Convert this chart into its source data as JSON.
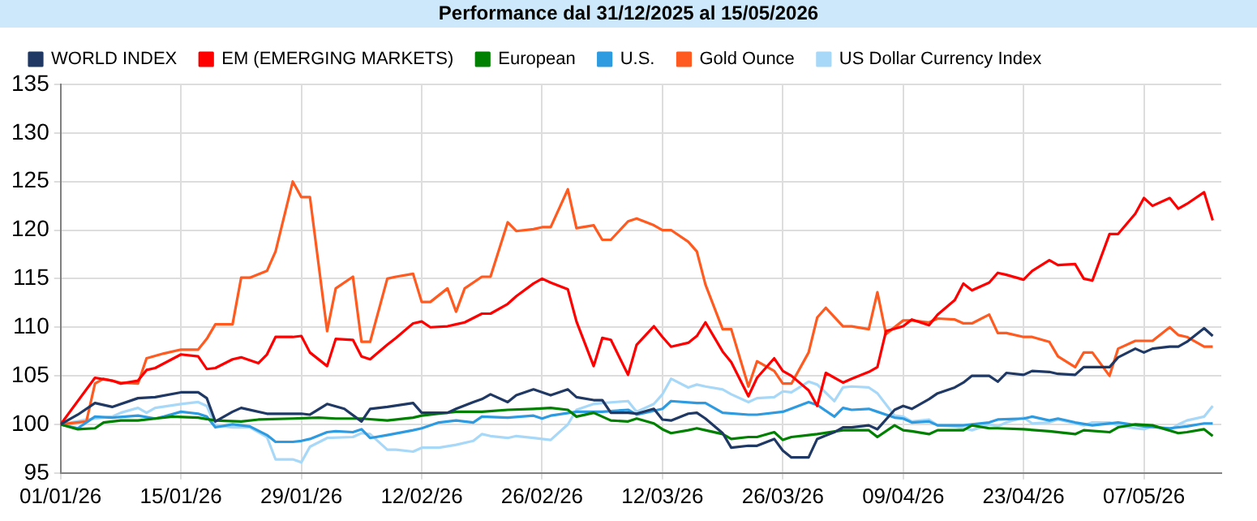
{
  "chart_data": {
    "type": "line",
    "title": "Performance dal 31/12/2025 al 15/05/2026",
    "xlim": [
      "2026-01-01",
      "2026-05-16"
    ],
    "xticks": [
      {
        "value": "2026-01-01",
        "label": "01/01/26"
      },
      {
        "value": "2026-01-15",
        "label": "15/01/26"
      },
      {
        "value": "2026-01-29",
        "label": "29/01/26"
      },
      {
        "value": "2026-02-12",
        "label": "12/02/26"
      },
      {
        "value": "2026-02-26",
        "label": "26/02/26"
      },
      {
        "value": "2026-03-12",
        "label": "12/03/26"
      },
      {
        "value": "2026-03-26",
        "label": "26/03/26"
      },
      {
        "value": "2026-04-09",
        "label": "09/04/26"
      },
      {
        "value": "2026-04-23",
        "label": "23/04/26"
      },
      {
        "value": "2026-05-07",
        "label": "07/05/26"
      }
    ],
    "ylim": [
      95,
      135
    ],
    "yticks": [
      95,
      100,
      105,
      110,
      115,
      120,
      125,
      130,
      135
    ],
    "grid": true,
    "legend": "top",
    "marker": "none",
    "line_style": "solid",
    "series": [
      {
        "name": "WORLD INDEX",
        "color": "#1f3864",
        "x": [
          "2026-01-01",
          "2026-01-03",
          "2026-01-05",
          "2026-01-07",
          "2026-01-10",
          "2026-01-12",
          "2026-01-15",
          "2026-01-17",
          "2026-01-18",
          "2026-01-19",
          "2026-01-21",
          "2026-01-22",
          "2026-01-25",
          "2026-01-29",
          "2026-01-30",
          "2026-02-01",
          "2026-02-03",
          "2026-02-05",
          "2026-02-06",
          "2026-02-08",
          "2026-02-11",
          "2026-02-12",
          "2026-02-15",
          "2026-02-16",
          "2026-02-18",
          "2026-02-19",
          "2026-02-20",
          "2026-02-22",
          "2026-02-23",
          "2026-02-25",
          "2026-02-27",
          "2026-03-01",
          "2026-03-02",
          "2026-03-04",
          "2026-03-05",
          "2026-03-06",
          "2026-03-08",
          "2026-03-09",
          "2026-03-11",
          "2026-03-12",
          "2026-03-13",
          "2026-03-15",
          "2026-03-16",
          "2026-03-17",
          "2026-03-19",
          "2026-03-20",
          "2026-03-22",
          "2026-03-23",
          "2026-03-25",
          "2026-03-26",
          "2026-03-27",
          "2026-03-29",
          "2026-03-30",
          "2026-04-01",
          "2026-04-02",
          "2026-04-03",
          "2026-04-05",
          "2026-04-06",
          "2026-04-08",
          "2026-04-09",
          "2026-04-10",
          "2026-04-12",
          "2026-04-13",
          "2026-04-15",
          "2026-04-16",
          "2026-04-17",
          "2026-04-19",
          "2026-04-20",
          "2026-04-21",
          "2026-04-23",
          "2026-04-24",
          "2026-04-26",
          "2026-04-27",
          "2026-04-29",
          "2026-04-30",
          "2026-05-01",
          "2026-05-03",
          "2026-05-04",
          "2026-05-06",
          "2026-05-07",
          "2026-05-08",
          "2026-05-10",
          "2026-05-11",
          "2026-05-12",
          "2026-05-14",
          "2026-05-15"
        ],
        "values": [
          100,
          101,
          102.2,
          101.8,
          102.7,
          102.8,
          103.3,
          103.3,
          102.7,
          100.3,
          101.3,
          101.7,
          101.1,
          101.1,
          101,
          102.1,
          101.6,
          100.3,
          101.6,
          101.8,
          102.2,
          101.2,
          101.2,
          101.6,
          102.3,
          102.6,
          103.1,
          102.3,
          103,
          103.6,
          103,
          103.6,
          102.8,
          102.5,
          102.5,
          101.2,
          101.2,
          101.1,
          101.6,
          100.5,
          100.4,
          101.1,
          101.2,
          100.6,
          99.1,
          97.6,
          97.8,
          97.8,
          98.5,
          97.3,
          96.6,
          96.6,
          98.5,
          99.2,
          99.7,
          99.7,
          99.9,
          99.5,
          101.5,
          101.9,
          101.6,
          102.6,
          103.2,
          103.8,
          104.3,
          105,
          105,
          104.4,
          105.3,
          105.1,
          105.5,
          105.4,
          105.2,
          105.1,
          105.9,
          105.9,
          105.9,
          106.9,
          107.8,
          107.4,
          107.8,
          108,
          108,
          108.5,
          109.9,
          109.1
        ]
      },
      {
        "name": "EM (EMERGING MARKETS)",
        "color": "#ff0000",
        "x": [
          "2026-01-01",
          "2026-01-05",
          "2026-01-07",
          "2026-01-08",
          "2026-01-10",
          "2026-01-11",
          "2026-01-12",
          "2026-01-15",
          "2026-01-17",
          "2026-01-18",
          "2026-01-19",
          "2026-01-21",
          "2026-01-22",
          "2026-01-24",
          "2026-01-25",
          "2026-01-26",
          "2026-01-28",
          "2026-01-29",
          "2026-01-30",
          "2026-02-01",
          "2026-02-02",
          "2026-02-04",
          "2026-02-05",
          "2026-02-06",
          "2026-02-08",
          "2026-02-09",
          "2026-02-11",
          "2026-02-12",
          "2026-02-13",
          "2026-02-15",
          "2026-02-16",
          "2026-02-17",
          "2026-02-19",
          "2026-02-20",
          "2026-02-22",
          "2026-02-23",
          "2026-02-25",
          "2026-02-26",
          "2026-02-27",
          "2026-03-01",
          "2026-03-02",
          "2026-03-04",
          "2026-03-05",
          "2026-03-06",
          "2026-03-08",
          "2026-03-09",
          "2026-03-11",
          "2026-03-12",
          "2026-03-13",
          "2026-03-15",
          "2026-03-16",
          "2026-03-17",
          "2026-03-19",
          "2026-03-20",
          "2026-03-22",
          "2026-03-23",
          "2026-03-25",
          "2026-03-26",
          "2026-03-27",
          "2026-03-29",
          "2026-03-30",
          "2026-03-31",
          "2026-04-02",
          "2026-04-03",
          "2026-04-05",
          "2026-04-06",
          "2026-04-07",
          "2026-04-09",
          "2026-04-10",
          "2026-04-12",
          "2026-04-13",
          "2026-04-15",
          "2026-04-16",
          "2026-04-17",
          "2026-04-19",
          "2026-04-20",
          "2026-04-21",
          "2026-04-23",
          "2026-04-24",
          "2026-04-26",
          "2026-04-27",
          "2026-04-29",
          "2026-04-30",
          "2026-05-01",
          "2026-05-03",
          "2026-05-04",
          "2026-05-06",
          "2026-05-07",
          "2026-05-08",
          "2026-05-10",
          "2026-05-11",
          "2026-05-12",
          "2026-05-14",
          "2026-05-15"
        ],
        "values": [
          100,
          104.8,
          104.5,
          104.2,
          104.5,
          105.6,
          105.8,
          107.2,
          107,
          105.7,
          105.8,
          106.7,
          106.9,
          106.3,
          107.2,
          109,
          109,
          109.1,
          107.4,
          106,
          108.8,
          108.7,
          107,
          106.7,
          108.2,
          108.9,
          110.4,
          110.6,
          110,
          110.1,
          110.3,
          110.5,
          111.4,
          111.4,
          112.4,
          113.2,
          114.5,
          115,
          114.6,
          113.9,
          110.6,
          106,
          108.9,
          108.7,
          105.1,
          108.2,
          110.1,
          109,
          108,
          108.4,
          109.1,
          110.5,
          107.5,
          106.4,
          102.9,
          104.8,
          106.8,
          105.5,
          105,
          103.5,
          101.9,
          105.3,
          104.3,
          104.7,
          105.4,
          105.9,
          109.6,
          110.1,
          110.8,
          110.2,
          111.3,
          112.8,
          114.5,
          113.8,
          114.6,
          115.6,
          115.4,
          114.9,
          115.8,
          116.9,
          116.4,
          116.5,
          115,
          114.8,
          119.6,
          119.6,
          121.7,
          123.3,
          122.5,
          123.3,
          122.2,
          122.7,
          123.9,
          121
        ]
      },
      {
        "name": "European",
        "color": "#008000",
        "x": [
          "2026-01-01",
          "2026-01-03",
          "2026-01-05",
          "2026-01-06",
          "2026-01-08",
          "2026-01-10",
          "2026-01-12",
          "2026-01-14",
          "2026-01-17",
          "2026-01-19",
          "2026-01-22",
          "2026-01-24",
          "2026-01-28",
          "2026-01-31",
          "2026-02-02",
          "2026-02-05",
          "2026-02-08",
          "2026-02-11",
          "2026-02-12",
          "2026-02-14",
          "2026-02-16",
          "2026-02-19",
          "2026-02-22",
          "2026-02-25",
          "2026-02-27",
          "2026-03-01",
          "2026-03-02",
          "2026-03-04",
          "2026-03-05",
          "2026-03-06",
          "2026-03-08",
          "2026-03-09",
          "2026-03-11",
          "2026-03-12",
          "2026-03-13",
          "2026-03-15",
          "2026-03-16",
          "2026-03-17",
          "2026-03-19",
          "2026-03-20",
          "2026-03-22",
          "2026-03-23",
          "2026-03-25",
          "2026-03-26",
          "2026-03-27",
          "2026-03-29",
          "2026-03-30",
          "2026-04-02",
          "2026-04-03",
          "2026-04-05",
          "2026-04-06",
          "2026-04-08",
          "2026-04-09",
          "2026-04-10",
          "2026-04-12",
          "2026-04-13",
          "2026-04-15",
          "2026-04-16",
          "2026-04-17",
          "2026-04-19",
          "2026-04-20",
          "2026-04-23",
          "2026-04-26",
          "2026-04-29",
          "2026-04-30",
          "2026-05-03",
          "2026-05-04",
          "2026-05-06",
          "2026-05-08",
          "2026-05-11",
          "2026-05-12",
          "2026-05-14",
          "2026-05-15"
        ],
        "values": [
          100,
          99.5,
          99.6,
          100.2,
          100.4,
          100.4,
          100.6,
          100.8,
          100.7,
          100.4,
          100.3,
          100.5,
          100.6,
          100.7,
          100.6,
          100.6,
          100.4,
          100.7,
          100.9,
          101.1,
          101.3,
          101.3,
          101.5,
          101.6,
          101.7,
          101.5,
          100.8,
          101.2,
          100.8,
          100.4,
          100.3,
          100.6,
          100.1,
          99.5,
          99.1,
          99.4,
          99.6,
          99.4,
          99,
          98.5,
          98.7,
          98.7,
          99.2,
          98.4,
          98.7,
          98.9,
          99,
          99.4,
          99.4,
          99.4,
          98.7,
          99.9,
          99.4,
          99.3,
          99,
          99.4,
          99.4,
          99.4,
          99.9,
          99.6,
          99.6,
          99.5,
          99.3,
          99,
          99.4,
          99.2,
          99.7,
          100,
          99.9,
          99.1,
          99.2,
          99.5,
          98.8
        ]
      },
      {
        "name": "U.S.",
        "color": "#2e9be0",
        "x": [
          "2026-01-01",
          "2026-01-03",
          "2026-01-05",
          "2026-01-07",
          "2026-01-10",
          "2026-01-12",
          "2026-01-13",
          "2026-01-15",
          "2026-01-17",
          "2026-01-18",
          "2026-01-19",
          "2026-01-21",
          "2026-01-23",
          "2026-01-25",
          "2026-01-26",
          "2026-01-28",
          "2026-01-29",
          "2026-01-30",
          "2026-02-01",
          "2026-02-02",
          "2026-02-04",
          "2026-02-05",
          "2026-02-06",
          "2026-02-08",
          "2026-02-11",
          "2026-02-12",
          "2026-02-14",
          "2026-02-16",
          "2026-02-18",
          "2026-02-19",
          "2026-02-22",
          "2026-02-25",
          "2026-02-26",
          "2026-02-27",
          "2026-03-02",
          "2026-03-05",
          "2026-03-08",
          "2026-03-09",
          "2026-03-12",
          "2026-03-13",
          "2026-03-16",
          "2026-03-17",
          "2026-03-19",
          "2026-03-22",
          "2026-03-23",
          "2026-03-26",
          "2026-03-29",
          "2026-03-30",
          "2026-04-01",
          "2026-04-02",
          "2026-04-03",
          "2026-04-05",
          "2026-04-06",
          "2026-04-08",
          "2026-04-09",
          "2026-04-10",
          "2026-04-12",
          "2026-04-13",
          "2026-04-16",
          "2026-04-19",
          "2026-04-20",
          "2026-04-23",
          "2026-04-24",
          "2026-04-26",
          "2026-04-27",
          "2026-04-29",
          "2026-05-01",
          "2026-05-04",
          "2026-05-07",
          "2026-05-10",
          "2026-05-12",
          "2026-05-14",
          "2026-05-15"
        ],
        "values": [
          100,
          99.6,
          100.8,
          100.7,
          100.9,
          100.6,
          100.8,
          101.3,
          101.1,
          100.8,
          99.7,
          100,
          99.8,
          98.9,
          98.2,
          98.2,
          98.3,
          98.5,
          99.2,
          99.3,
          99.2,
          99.5,
          98.6,
          98.9,
          99.4,
          99.6,
          100.2,
          100.4,
          100.2,
          100.8,
          100.7,
          100.9,
          100.6,
          100.9,
          101.3,
          101.3,
          101.5,
          101,
          101.6,
          102.4,
          102.2,
          102.2,
          101.2,
          101,
          101,
          101.3,
          102.3,
          102,
          100.8,
          101.7,
          101.5,
          101.6,
          101.3,
          100.7,
          100.6,
          100.2,
          100.3,
          99.9,
          99.9,
          100.2,
          100.5,
          100.6,
          100.8,
          100.4,
          100.6,
          100.2,
          99.9,
          100.2,
          99.8,
          99.6,
          99.8,
          100.1,
          100.1
        ]
      },
      {
        "name": "Gold Ounce",
        "color": "#ff5a1f",
        "x": [
          "2026-01-01",
          "2026-01-04",
          "2026-01-05",
          "2026-01-06",
          "2026-01-08",
          "2026-01-10",
          "2026-01-11",
          "2026-01-13",
          "2026-01-15",
          "2026-01-17",
          "2026-01-18",
          "2026-01-19",
          "2026-01-21",
          "2026-01-22",
          "2026-01-23",
          "2026-01-25",
          "2026-01-26",
          "2026-01-28",
          "2026-01-29",
          "2026-01-30",
          "2026-02-01",
          "2026-02-02",
          "2026-02-04",
          "2026-02-05",
          "2026-02-06",
          "2026-02-08",
          "2026-02-09",
          "2026-02-11",
          "2026-02-12",
          "2026-02-13",
          "2026-02-15",
          "2026-02-16",
          "2026-02-17",
          "2026-02-19",
          "2026-02-20",
          "2026-02-22",
          "2026-02-23",
          "2026-02-25",
          "2026-02-26",
          "2026-02-27",
          "2026-03-01",
          "2026-03-02",
          "2026-03-04",
          "2026-03-05",
          "2026-03-06",
          "2026-03-08",
          "2026-03-09",
          "2026-03-11",
          "2026-03-12",
          "2026-03-13",
          "2026-03-15",
          "2026-03-16",
          "2026-03-17",
          "2026-03-19",
          "2026-03-20",
          "2026-03-22",
          "2026-03-23",
          "2026-03-25",
          "2026-03-26",
          "2026-03-27",
          "2026-03-29",
          "2026-03-30",
          "2026-03-31",
          "2026-04-02",
          "2026-04-03",
          "2026-04-05",
          "2026-04-06",
          "2026-04-07",
          "2026-04-09",
          "2026-04-10",
          "2026-04-12",
          "2026-04-13",
          "2026-04-15",
          "2026-04-16",
          "2026-04-17",
          "2026-04-19",
          "2026-04-20",
          "2026-04-21",
          "2026-04-23",
          "2026-04-24",
          "2026-04-26",
          "2026-04-27",
          "2026-04-29",
          "2026-04-30",
          "2026-05-01",
          "2026-05-03",
          "2026-05-04",
          "2026-05-06",
          "2026-05-07",
          "2026-05-08",
          "2026-05-10",
          "2026-05-11",
          "2026-05-12",
          "2026-05-14",
          "2026-05-15"
        ],
        "values": [
          100,
          100.3,
          104.2,
          104.7,
          104.3,
          104.2,
          106.8,
          107.3,
          107.7,
          107.7,
          108.8,
          110.3,
          110.3,
          115.1,
          115.1,
          115.8,
          117.8,
          125,
          123.4,
          123.4,
          109.6,
          114,
          115.2,
          108.5,
          108.5,
          115,
          115.2,
          115.5,
          112.6,
          112.6,
          114,
          111.6,
          114,
          115.2,
          115.2,
          120.8,
          119.9,
          120.1,
          120.3,
          120.3,
          124.2,
          120.2,
          120.5,
          119,
          119,
          120.9,
          121.2,
          120.5,
          120,
          120,
          118.8,
          117.8,
          114.4,
          109.8,
          109.8,
          103.9,
          106.5,
          105.5,
          104.2,
          104.2,
          107.4,
          111,
          112,
          110.1,
          110.1,
          109.8,
          113.6,
          109.3,
          110.7,
          110.7,
          110.5,
          110.9,
          110.8,
          110.4,
          110.4,
          111.3,
          109.4,
          109.4,
          109,
          109,
          108.5,
          107,
          105.9,
          107.4,
          107.4,
          105,
          107.8,
          108.6,
          108.6,
          108.6,
          110,
          109.2,
          109,
          108,
          108
        ]
      },
      {
        "name": "US Dollar Currency Index",
        "color": "#a8d8f8",
        "x": [
          "2026-01-01",
          "2026-01-04",
          "2026-01-07",
          "2026-01-08",
          "2026-01-10",
          "2026-01-11",
          "2026-01-12",
          "2026-01-15",
          "2026-01-17",
          "2026-01-18",
          "2026-01-19",
          "2026-01-21",
          "2026-01-23",
          "2026-01-25",
          "2026-01-26",
          "2026-01-28",
          "2026-01-29",
          "2026-01-30",
          "2026-02-01",
          "2026-02-04",
          "2026-02-05",
          "2026-02-06",
          "2026-02-08",
          "2026-02-09",
          "2026-02-11",
          "2026-02-12",
          "2026-02-14",
          "2026-02-16",
          "2026-02-18",
          "2026-02-19",
          "2026-02-20",
          "2026-02-22",
          "2026-02-23",
          "2026-02-25",
          "2026-02-27",
          "2026-03-01",
          "2026-03-02",
          "2026-03-04",
          "2026-03-05",
          "2026-03-08",
          "2026-03-09",
          "2026-03-11",
          "2026-03-12",
          "2026-03-13",
          "2026-03-15",
          "2026-03-16",
          "2026-03-17",
          "2026-03-19",
          "2026-03-20",
          "2026-03-22",
          "2026-03-23",
          "2026-03-25",
          "2026-03-26",
          "2026-03-27",
          "2026-03-29",
          "2026-03-30",
          "2026-04-01",
          "2026-04-02",
          "2026-04-03",
          "2026-04-05",
          "2026-04-06",
          "2026-04-08",
          "2026-04-09",
          "2026-04-10",
          "2026-04-12",
          "2026-04-13",
          "2026-04-15",
          "2026-04-16",
          "2026-04-17",
          "2026-04-19",
          "2026-04-20",
          "2026-04-21",
          "2026-04-23",
          "2026-04-24",
          "2026-04-26",
          "2026-04-27",
          "2026-04-29",
          "2026-04-30",
          "2026-05-01",
          "2026-05-03",
          "2026-05-04",
          "2026-05-06",
          "2026-05-07",
          "2026-05-08",
          "2026-05-10",
          "2026-05-11",
          "2026-05-12",
          "2026-05-14",
          "2026-05-15"
        ],
        "values": [
          100,
          100.5,
          100.8,
          101.2,
          101.7,
          101.2,
          101.7,
          102.1,
          102.3,
          101.9,
          99.9,
          99.7,
          99.7,
          98.7,
          96.4,
          96.4,
          96.1,
          97.7,
          98.6,
          98.7,
          99.1,
          99,
          97.4,
          97.4,
          97.2,
          97.6,
          97.6,
          97.9,
          98.3,
          99,
          98.8,
          98.6,
          98.8,
          98.6,
          98.4,
          100,
          101.5,
          102.1,
          102.2,
          102.4,
          101.3,
          102.1,
          103.1,
          104.7,
          103.8,
          104.1,
          103.9,
          103.6,
          103.1,
          102.3,
          102.7,
          102.8,
          103.4,
          103.3,
          104.4,
          104.1,
          102.4,
          103.8,
          103.9,
          103.8,
          103.2,
          100.9,
          100.8,
          100.3,
          100.5,
          99.9,
          99.8,
          99.6,
          99.4,
          100,
          99.8,
          100.2,
          100.7,
          100.1,
          100.2,
          100.5,
          100.1,
          99.9,
          100.2,
          100.2,
          99.9,
          99.6,
          99.5,
          99.8,
          99.4,
          100,
          100.4,
          100.8,
          101.9
        ]
      }
    ]
  }
}
